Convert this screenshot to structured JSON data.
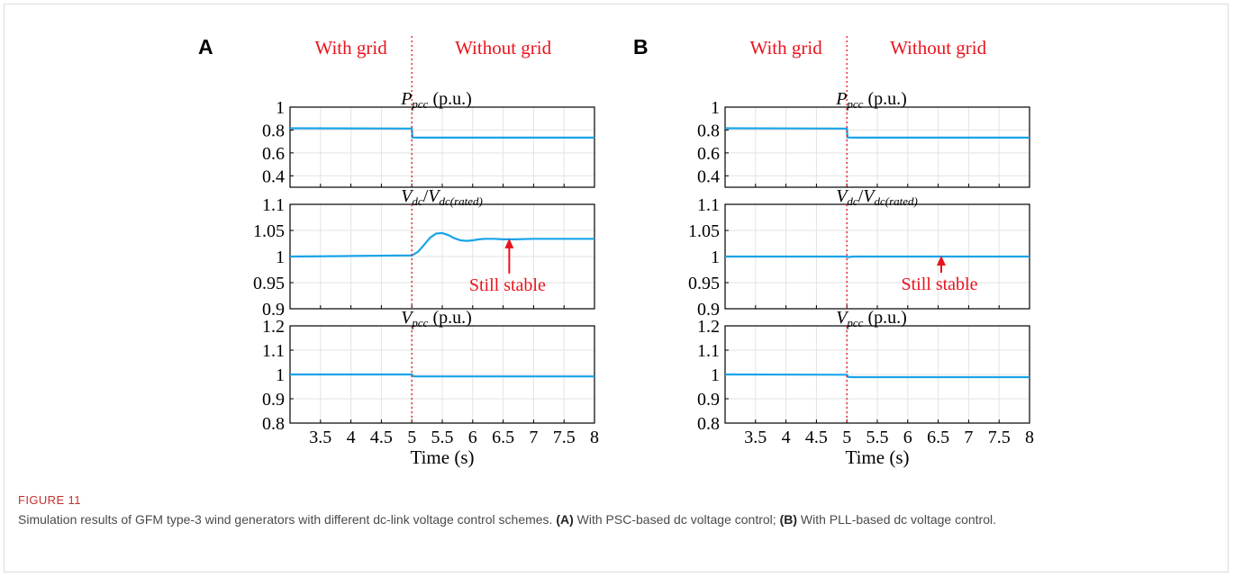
{
  "figure": {
    "label": "FIGURE 11",
    "caption_main": "Simulation results of GFM type-3 wind generators with different dc-link voltage control schemes.",
    "caption_a_tag": "(A)",
    "caption_a_text": " With PSC-based dc voltage control;",
    "caption_b_tag": "(B)",
    "caption_b_text": " With PLL-based dc voltage control."
  },
  "colors": {
    "trace": "#1aa3e8",
    "annotation": "#e8141e",
    "axis": "#000000",
    "grid": "#e3e3e3"
  },
  "chart_data": [
    {
      "type": "line",
      "panel_label": "A",
      "region_left": "With grid",
      "region_right": "Without grid",
      "event_time": 5,
      "xlabel": "Time (s)",
      "xlim": [
        3,
        8
      ],
      "xticks": [
        3.5,
        4,
        4.5,
        5,
        5.5,
        6,
        6.5,
        7,
        7.5,
        8
      ],
      "subplots": [
        {
          "ylabel_main": "P",
          "ylabel_sub": "pcc",
          "ylabel_suffix": " (p.u.)",
          "ylim": [
            0.3,
            1
          ],
          "yticks": [
            0.4,
            0.6,
            0.8,
            1
          ],
          "series": [
            {
              "x": [
                3,
                4.98,
                5.0,
                5.01,
                5.1,
                5.5,
                8
              ],
              "y": [
                0.815,
                0.813,
                0.813,
                0.735,
                0.733,
                0.733,
                0.733
              ]
            }
          ]
        },
        {
          "ylabel_main": "V",
          "ylabel_sub": "dc",
          "ylabel_main2": "V",
          "ylabel_sub2": "dc(rated)",
          "ylim": [
            0.9,
            1.1
          ],
          "yticks": [
            0.9,
            0.95,
            1,
            1.05,
            1.1
          ],
          "annotation": {
            "text": "Still stable",
            "target_x": 6.6,
            "target_y": 1.033
          },
          "series": [
            {
              "x": [
                3,
                4.0,
                4.8,
                5.0,
                5.1,
                5.2,
                5.3,
                5.4,
                5.5,
                5.6,
                5.7,
                5.8,
                5.9,
                6.0,
                6.1,
                6.2,
                6.35,
                6.5,
                6.7,
                7.0,
                8
              ],
              "y": [
                1.0,
                1.001,
                1.002,
                1.002,
                1.009,
                1.022,
                1.036,
                1.044,
                1.045,
                1.041,
                1.035,
                1.031,
                1.03,
                1.031,
                1.033,
                1.034,
                1.034,
                1.033,
                1.033,
                1.034,
                1.034
              ]
            }
          ]
        },
        {
          "ylabel_main": "V",
          "ylabel_sub": "pcc",
          "ylabel_suffix": " (p.u.)",
          "ylim": [
            0.8,
            1.2
          ],
          "yticks": [
            0.8,
            0.9,
            1,
            1.1,
            1.2
          ],
          "series": [
            {
              "x": [
                3,
                4.99,
                5.0,
                5.01,
                5.05,
                8
              ],
              "y": [
                1.0,
                1.0,
                1.0,
                0.994,
                0.992,
                0.992
              ]
            }
          ]
        }
      ]
    },
    {
      "type": "line",
      "panel_label": "B",
      "region_left": "With grid",
      "region_right": "Without grid",
      "event_time": 5,
      "xlabel": "Time (s)",
      "xlim": [
        3,
        8
      ],
      "xticks": [
        3.5,
        4,
        4.5,
        5,
        5.5,
        6,
        6.5,
        7,
        7.5,
        8
      ],
      "subplots": [
        {
          "ylabel_main": "P",
          "ylabel_sub": "pcc",
          "ylabel_suffix": " (p.u.)",
          "ylim": [
            0.3,
            1
          ],
          "yticks": [
            0.4,
            0.6,
            0.8,
            1
          ],
          "series": [
            {
              "x": [
                3,
                4.98,
                5.0,
                5.01,
                5.1,
                8
              ],
              "y": [
                0.815,
                0.813,
                0.813,
                0.735,
                0.733,
                0.733
              ]
            }
          ]
        },
        {
          "ylabel_main": "V",
          "ylabel_sub": "dc",
          "ylabel_main2": "V",
          "ylabel_sub2": "dc(rated)",
          "ylim": [
            0.9,
            1.1
          ],
          "yticks": [
            0.9,
            0.95,
            1,
            1.05,
            1.1
          ],
          "annotation": {
            "text": "Still stable",
            "target_x": 6.55,
            "target_y": 1.0
          },
          "series": [
            {
              "x": [
                3,
                5.0,
                5.02,
                5.1,
                8
              ],
              "y": [
                1.0,
                1.0,
                0.999,
                1.0,
                1.0
              ]
            }
          ]
        },
        {
          "ylabel_main": "V",
          "ylabel_sub": "pcc",
          "ylabel_suffix": " (p.u.)",
          "ylim": [
            0.8,
            1.2
          ],
          "yticks": [
            0.8,
            0.9,
            1,
            1.1,
            1.2
          ],
          "series": [
            {
              "x": [
                3,
                4.99,
                5.0,
                5.02,
                5.1,
                8
              ],
              "y": [
                1.0,
                0.999,
                0.999,
                0.99,
                0.989,
                0.989
              ]
            }
          ]
        }
      ]
    }
  ]
}
